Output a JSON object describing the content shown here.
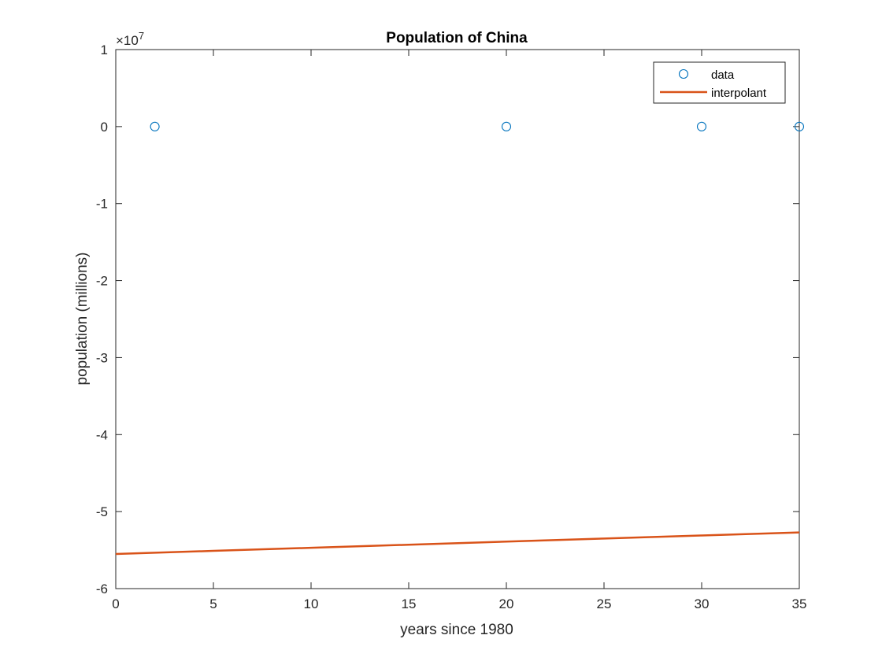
{
  "chart_data": {
    "type": "line",
    "title": "Population of China",
    "xlabel": "years since 1980",
    "ylabel": "population (millions)",
    "xlim": [
      0,
      35
    ],
    "ylim": [
      -6,
      1
    ],
    "xticks": [
      "0",
      "5",
      "10",
      "15",
      "20",
      "25",
      "30",
      "35"
    ],
    "yticks": [
      "-6",
      "-5",
      "-4",
      "-3",
      "-2",
      "-1",
      "0",
      "1"
    ],
    "y_exponent": {
      "base": "×10",
      "power": "7"
    },
    "grid": false,
    "legend_position": "top-right",
    "series": [
      {
        "name": "data",
        "kind": "markers",
        "color": "#0072BD",
        "x": [
          2,
          20,
          30,
          35
        ],
        "y": [
          0,
          0,
          0,
          0
        ]
      },
      {
        "name": "interpolant",
        "kind": "line",
        "color": "#D95319",
        "x": [
          0,
          5,
          10,
          15,
          20,
          25,
          30,
          35
        ],
        "y": [
          -5.55,
          -5.51,
          -5.47,
          -5.43,
          -5.39,
          -5.35,
          -5.31,
          -5.27
        ]
      }
    ]
  }
}
